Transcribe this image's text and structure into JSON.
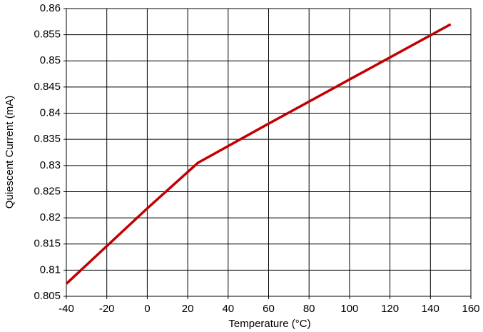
{
  "chart_data": {
    "type": "line",
    "x_label": "Temperature (°C)",
    "y_label": "Quiescent Current (mA)",
    "x": [
      -40,
      0,
      25,
      60,
      150
    ],
    "series": [
      {
        "name": "Quiescent Current",
        "color": "#c00000",
        "values": [
          0.8074,
          0.8218,
          0.8305,
          0.838,
          0.857
        ]
      }
    ],
    "xlim": [
      -40,
      160
    ],
    "xticks": [
      -40,
      -20,
      0,
      20,
      40,
      60,
      80,
      100,
      120,
      140,
      160
    ],
    "ylim": [
      0.805,
      0.86
    ],
    "yticks": [
      0.805,
      0.81,
      0.815,
      0.82,
      0.825,
      0.83,
      0.835,
      0.84,
      0.845,
      0.85,
      0.855,
      0.86
    ],
    "grid": true
  }
}
